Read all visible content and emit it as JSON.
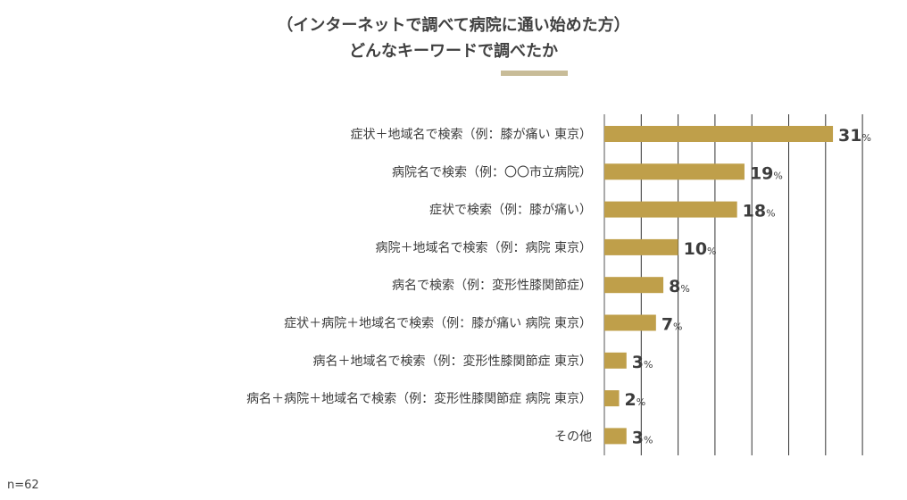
{
  "chart_data": {
    "type": "bar",
    "orientation": "horizontal",
    "title_line1": "（インターネットで調べて病院に通い始めた方）",
    "title_line2": "どんなキーワードで調べたか",
    "categories": [
      "症状＋地域名で検索（例：膝が痛い 東京）",
      "病院名で検索（例：〇〇市立病院）",
      "症状で検索（例：膝が痛い）",
      "病院＋地域名で検索（例：病院 東京）",
      "病名で検索（例：変形性膝関節症）",
      "症状＋病院＋地域名で検索（例：膝が痛い 病院 東京）",
      "病名＋地域名で検索（例：変形性膝関節症 東京）",
      "病名＋病院＋地域名で検索（例：変形性膝関節症 病院 東京）",
      "その他"
    ],
    "values": [
      31,
      19,
      18,
      10,
      8,
      7,
      3,
      2,
      3
    ],
    "unit": "%",
    "xlim": [
      0,
      35
    ],
    "grid_step": 5,
    "grid": true,
    "bar_color": "#bf9f4a",
    "sample_size": "n=62"
  }
}
